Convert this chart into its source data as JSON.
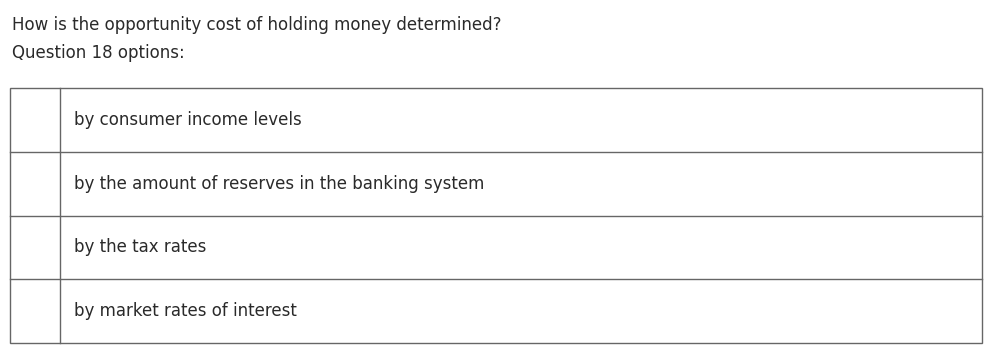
{
  "title_line1": "How is the opportunity cost of holding money determined?",
  "title_line2": "Question 18 options:",
  "options": [
    "by consumer income levels",
    "by the amount of reserves in the banking system",
    "by the tax rates",
    "by market rates of interest"
  ],
  "bg_color": "#ffffff",
  "text_color": "#2a2a2a",
  "border_color": "#666666",
  "title_fontsize": 12,
  "option_fontsize": 12,
  "fig_width": 9.92,
  "fig_height": 3.49,
  "dpi": 100
}
